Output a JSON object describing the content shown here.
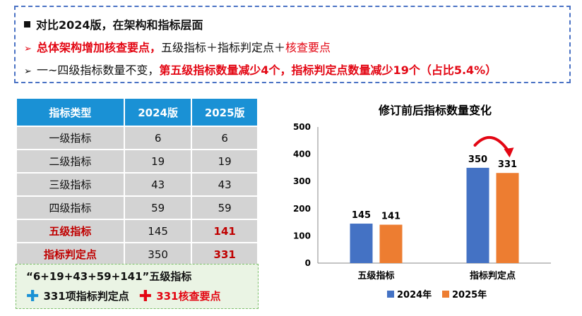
{
  "summary": {
    "line1": "对比2024版，在架构和指标层面",
    "line2_red": "总体架构增加核查要点，",
    "line2_black": "五级指标＋指标判定点＋",
    "line2_red2": "核查要点",
    "line3_black": "一~四级指标数量不变，",
    "line3_red": "第五级指标数量减少4个，指标判定点数量减少19个（占比5.4%）"
  },
  "table": {
    "headers": [
      "指标类型",
      "2024版",
      "2025版"
    ],
    "rows": [
      [
        "一级指标",
        "6",
        "6"
      ],
      [
        "二级指标",
        "19",
        "19"
      ],
      [
        "三级指标",
        "43",
        "43"
      ],
      [
        "四级指标",
        "59",
        "59"
      ],
      [
        "五级指标",
        "145",
        "141"
      ],
      [
        "指标判定点",
        "350",
        "331"
      ]
    ]
  },
  "note": {
    "line1": "“6+19+43+59+141”五级指标",
    "item1": "331项指标判定点",
    "item2": "331核查要点"
  },
  "colors": {
    "series2024": "#4472c4",
    "series2025": "#ed7d31",
    "arrow": "#e30613"
  },
  "chart_data": {
    "type": "bar",
    "title": "修订前后指标数量变化",
    "categories": [
      "五级指标",
      "指标判定点"
    ],
    "series": [
      {
        "name": "2024年",
        "values": [
          145,
          350
        ]
      },
      {
        "name": "2025年",
        "values": [
          141,
          331
        ]
      }
    ],
    "ylim": [
      0,
      500
    ],
    "yticks": [
      0,
      100,
      200,
      300,
      400,
      500
    ],
    "legend": "bottom",
    "grid": false
  }
}
